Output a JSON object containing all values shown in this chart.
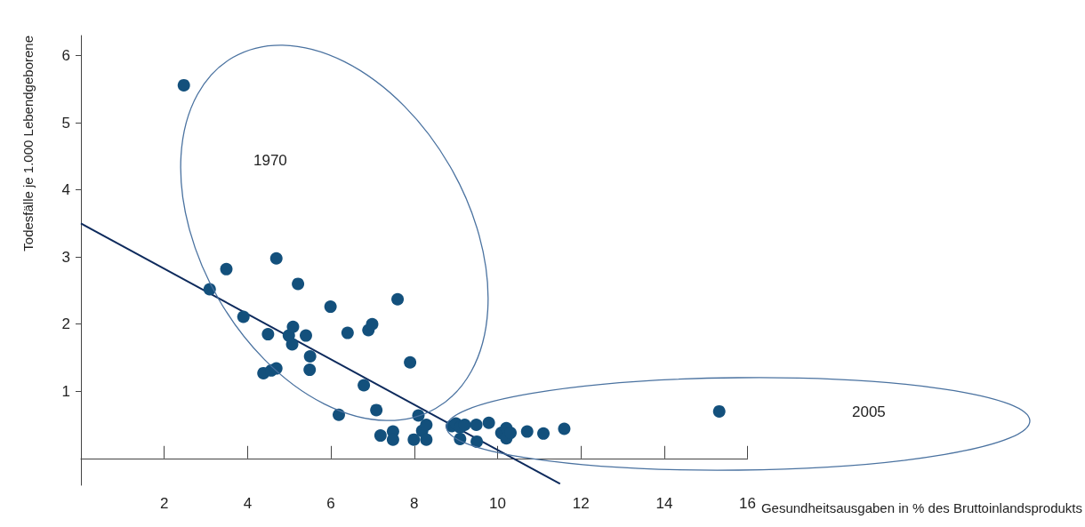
{
  "chart_data": {
    "type": "scatter",
    "xlabel": "Gesundheitsausgaben in % des Bruttoinlandsprodukts",
    "ylabel": "Todesfälle je 1.000 Lebendgeborene",
    "annotations": [
      "1970",
      "2005"
    ],
    "series": [
      {
        "type": "scatter",
        "color": "#13507c",
        "marker": "circle",
        "x": [
          2.47,
          3.09,
          3.49,
          3.9,
          4.38,
          4.49,
          4.57,
          4.69,
          4.69,
          4.99,
          5.07,
          5.09,
          5.21,
          5.4,
          5.5,
          5.49,
          5.99,
          6.4,
          6.79,
          6.9,
          6.99,
          7.6,
          7.9,
          6.19,
          7.09,
          7.19,
          7.49,
          7.49,
          7.99,
          8.1,
          8.19,
          8.29,
          8.29,
          8.9,
          9.0,
          9.1,
          9.1,
          9.21,
          9.49,
          9.5,
          9.79,
          10.09,
          10.21,
          10.21,
          10.31,
          10.71,
          11.1,
          11.6,
          15.32
        ],
        "values": [
          5.56,
          2.52,
          2.82,
          2.11,
          1.27,
          1.85,
          1.31,
          1.34,
          2.98,
          1.83,
          1.7,
          1.96,
          2.6,
          1.83,
          1.52,
          1.32,
          2.26,
          1.87,
          1.09,
          1.91,
          2.0,
          2.37,
          1.43,
          0.65,
          0.72,
          0.34,
          0.4,
          0.28,
          0.28,
          0.64,
          0.41,
          0.5,
          0.28,
          0.48,
          0.52,
          0.46,
          0.29,
          0.5,
          0.5,
          0.25,
          0.53,
          0.38,
          0.45,
          0.3,
          0.38,
          0.4,
          0.37,
          0.44,
          0.7
        ]
      },
      {
        "type": "line",
        "color": "#0d2a5c",
        "marker": "none",
        "line_style": "solid",
        "x": [
          0,
          11.5
        ],
        "values": [
          3.5,
          -0.38
        ]
      }
    ],
    "xlim": [
      0,
      16
    ],
    "xticks": [
      2,
      4,
      6,
      8,
      10,
      12,
      14,
      16
    ],
    "ylim": [
      -0.4,
      6.3
    ],
    "yticks": [
      1,
      2,
      3,
      4,
      5,
      6
    ],
    "grid": false
  }
}
